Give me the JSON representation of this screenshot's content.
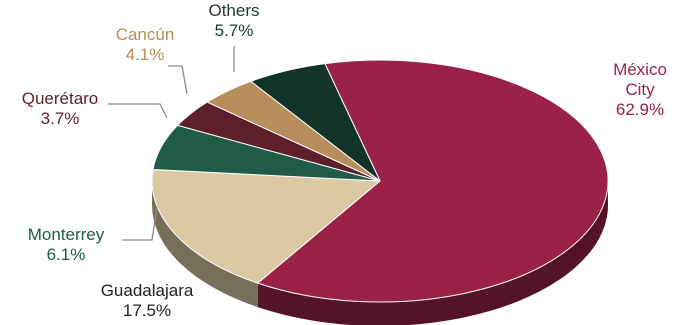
{
  "chart_data": {
    "type": "pie",
    "style": "3d",
    "start_slice": "México City",
    "slices": [
      {
        "name": "México City",
        "name_lines": [
          "México",
          "City"
        ],
        "value": 62.9,
        "value_label": "62.9%",
        "color": "#9b2247",
        "label_color": "#9b2247"
      },
      {
        "name": "Guadalajara",
        "name_lines": [
          "Guadalajara"
        ],
        "value": 17.5,
        "value_label": "17.5%",
        "color": "#dbc9a3",
        "label_color": "#222222"
      },
      {
        "name": "Monterrey",
        "name_lines": [
          "Monterrey"
        ],
        "value": 6.1,
        "value_label": "6.1%",
        "color": "#1f5b48",
        "label_color": "#1f5b48"
      },
      {
        "name": "Querétaro",
        "name_lines": [
          "Querétaro"
        ],
        "value": 3.7,
        "value_label": "3.7%",
        "color": "#5e1f2b",
        "label_color": "#5e1f2b"
      },
      {
        "name": "Cancún",
        "name_lines": [
          "Cancún"
        ],
        "value": 4.1,
        "value_label": "4.1%",
        "color": "#b88e5d",
        "label_color": "#b88e5d"
      },
      {
        "name": "Others",
        "name_lines": [
          "Others"
        ],
        "value": 5.7,
        "value_label": "5.7%",
        "color": "#123328",
        "label_color": "#1c3b30"
      }
    ]
  }
}
